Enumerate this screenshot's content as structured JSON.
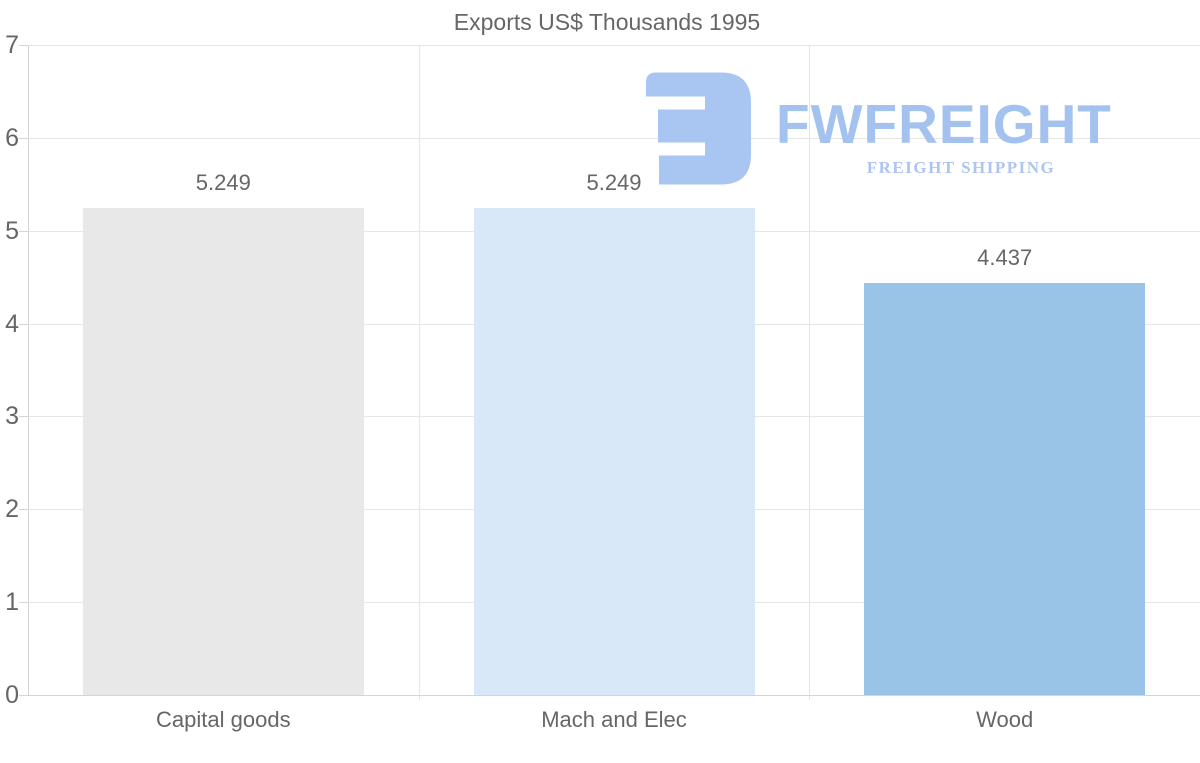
{
  "chart_data": {
    "type": "bar",
    "title": "Exports US$ Thousands 1995",
    "categories": [
      "Capital goods",
      "Mach and Elec",
      "Wood"
    ],
    "values": [
      5.249,
      5.249,
      4.437
    ],
    "value_labels": [
      "5.249",
      "5.249",
      "4.437"
    ],
    "bar_colors": [
      "#e8e8e8",
      "#d9e8f9",
      "#9ac3e8"
    ],
    "ylim": [
      0,
      7
    ],
    "yticks": [
      0,
      1,
      2,
      3,
      4,
      5,
      6,
      7
    ],
    "grid": true,
    "legend": "none",
    "label_color": "#666666",
    "gridline_color": "#e6e6e6",
    "axis_color": "#d4d4d4"
  },
  "watermark": {
    "brand": "FWFREIGHT",
    "tagline": "FREIGHT SHIPPING",
    "logo_icon": "fwfreight-mark",
    "mark_color": "#a9c6f2",
    "brand_color": "#a4c2f0",
    "tagline_color": "#aec5f1"
  }
}
